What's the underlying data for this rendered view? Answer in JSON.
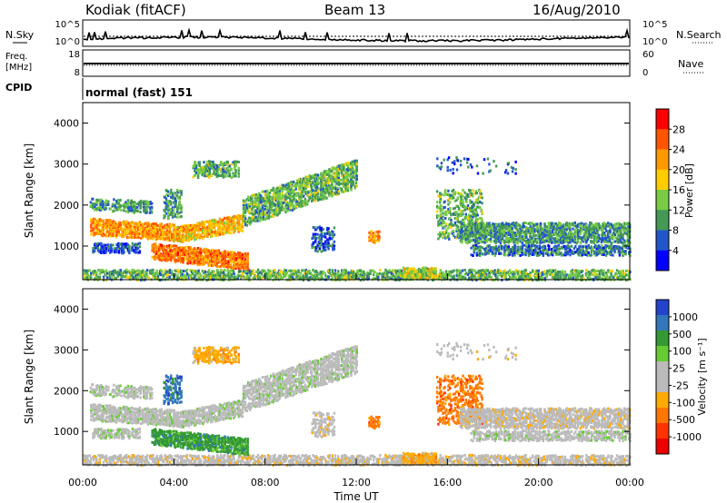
{
  "header": {
    "station": "Kodiak (fitACF)",
    "beam": "Beam 13",
    "date": "16/Aug/2010"
  },
  "strip_sky": {
    "left_label": "N.Sky",
    "right_label": "N.Search",
    "left_ticks": [
      "10^5",
      "10^0"
    ],
    "right_ticks": [
      "10^5",
      "10^0"
    ]
  },
  "strip_freq": {
    "left_label_1": "Freq.",
    "left_label_2": "[MHz]",
    "right_label": "Nave",
    "left_ticks": [
      "18",
      "8"
    ],
    "right_ticks": [
      "60",
      "0"
    ]
  },
  "cpid": {
    "label": "CPID",
    "value": "normal (fast) 151"
  },
  "colors": {
    "power_scale": [
      "#0000ff",
      "#2255cc",
      "#449955",
      "#77cc44",
      "#ffcc00",
      "#ff9900",
      "#ff5500",
      "#ff0000"
    ],
    "velocity_scale": [
      "#2244cc",
      "#3377bb",
      "#339933",
      "#66cc33",
      "#bbbbbb",
      "#bbbbbb",
      "#ffaa00",
      "#ff7700",
      "#ff3300",
      "#ee0000"
    ]
  },
  "chart_data": [
    {
      "type": "heatmap",
      "name": "power-panel",
      "ylabel": "Slant Range [km]",
      "yticks": [
        "1000",
        "2000",
        "3000",
        "4000"
      ],
      "ylim": [
        180,
        4500
      ],
      "xlim": [
        0,
        24
      ],
      "colorbar_label": "Power [dB]",
      "colorbar_ticks": [
        "4",
        "8",
        "12",
        "16",
        "20",
        "24",
        "28"
      ],
      "colorbar_range": [
        0,
        32
      ]
    },
    {
      "type": "heatmap",
      "name": "velocity-panel",
      "ylabel": "Slant Range [km]",
      "yticks": [
        "1000",
        "2000",
        "3000",
        "4000"
      ],
      "ylim": [
        180,
        4500
      ],
      "xlim": [
        0,
        24
      ],
      "xlabel": "Time UT",
      "xticks": [
        "00:00",
        "04:00",
        "08:00",
        "12:00",
        "16:00",
        "20:00",
        "00:00"
      ],
      "colorbar_label": "Velocity [m s⁻¹]",
      "colorbar_ticks": [
        "1000",
        "500",
        "100",
        "25",
        "-25",
        "-100",
        "-500",
        "-1000"
      ]
    }
  ]
}
